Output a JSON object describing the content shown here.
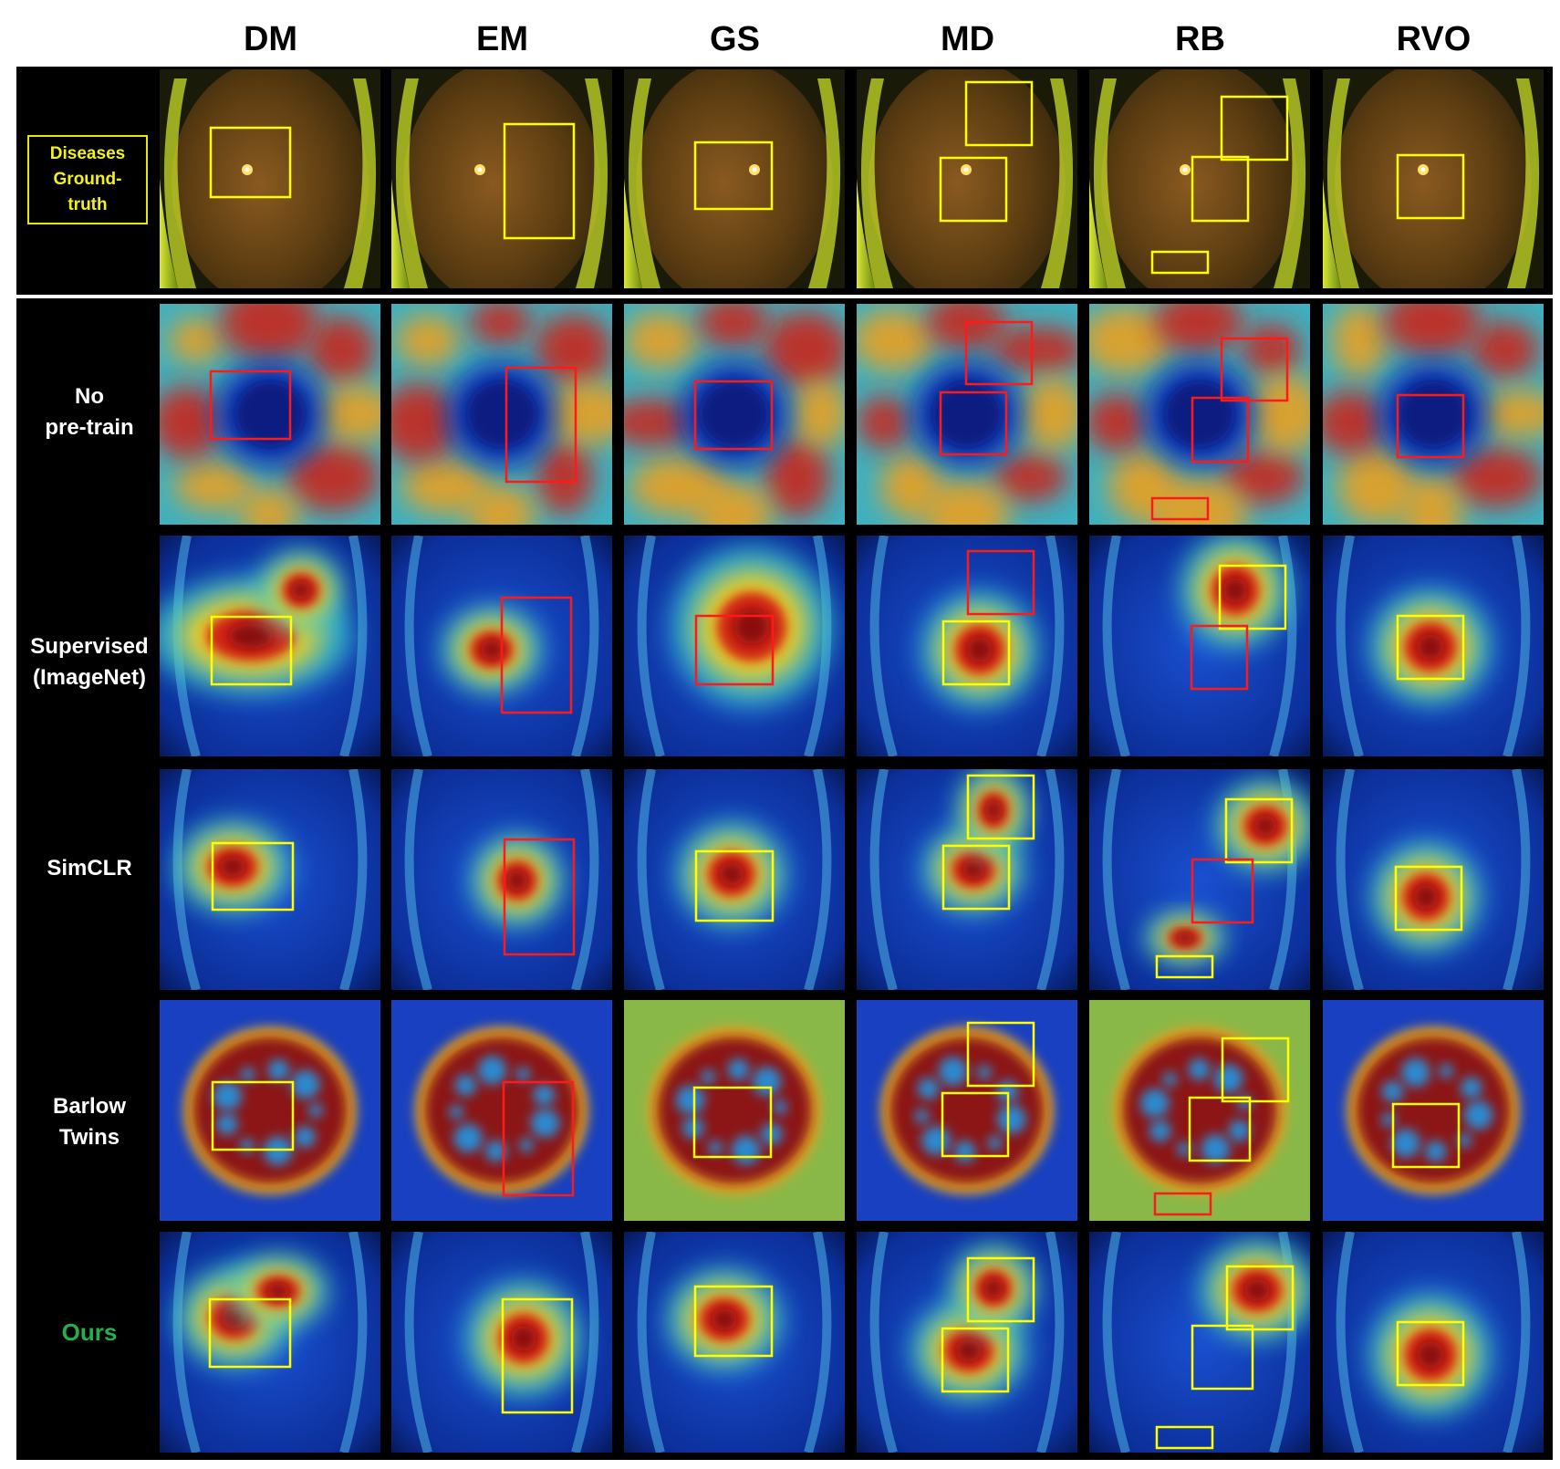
{
  "columns": [
    "DM",
    "EM",
    "GS",
    "MD",
    "RB",
    "RVO"
  ],
  "legend_label": "Diseases\nGround-\ntruth",
  "rows": [
    {
      "key": "gt",
      "label": "",
      "kind": "fundus"
    },
    {
      "key": "no_pretrain",
      "label": "No\npre-train",
      "kind": "heatmap-noise"
    },
    {
      "key": "supervised",
      "label": "Supervised\n(ImageNet)",
      "kind": "heatmap-focus"
    },
    {
      "key": "simclr",
      "label": "SimCLR",
      "kind": "heatmap-focus"
    },
    {
      "key": "barlow",
      "label": "Barlow\nTwins",
      "kind": "heatmap-blob"
    },
    {
      "key": "ours",
      "label": "Ours",
      "kind": "heatmap-focus"
    }
  ],
  "colors": {
    "label_default": "#ffffff",
    "label_ours": "#22b04c",
    "legend": "#f2f21a",
    "box_correct": "#ffff00",
    "box_missed": "#ff1a1a"
  },
  "box_semantics": {
    "yellow": "lesion correctly attended",
    "red": "lesion missed"
  }
}
